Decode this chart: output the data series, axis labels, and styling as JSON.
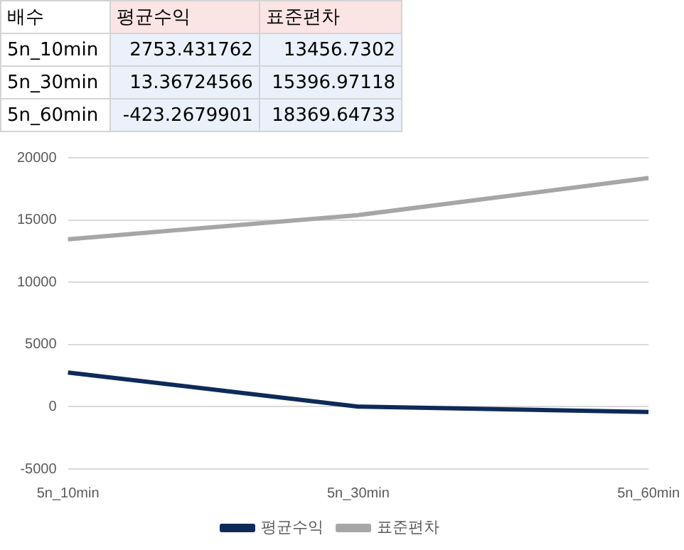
{
  "chart_data": {
    "type": "line",
    "categories": [
      "5n_10min",
      "5n_30min",
      "5n_60min"
    ],
    "series": [
      {
        "name": "평균수익",
        "color": "#0e2a5a",
        "values": [
          2753.431762,
          13.36724566,
          -423.2679901
        ]
      },
      {
        "name": "표준편차",
        "color": "#a6a6a6",
        "values": [
          13456.7302,
          15396.97118,
          18369.64733
        ]
      }
    ],
    "ylim": [
      -5000,
      20000
    ],
    "yticks": [
      -5000,
      0,
      5000,
      10000,
      15000,
      20000
    ],
    "grid": "y",
    "legend": "bottom",
    "marker": "none",
    "line_style": "solid",
    "annotations": [
      "배수",
      "2753.431762",
      "13456.7302",
      "13.36724566",
      "15396.97118",
      "-423.2679901",
      "18369.64733"
    ]
  }
}
